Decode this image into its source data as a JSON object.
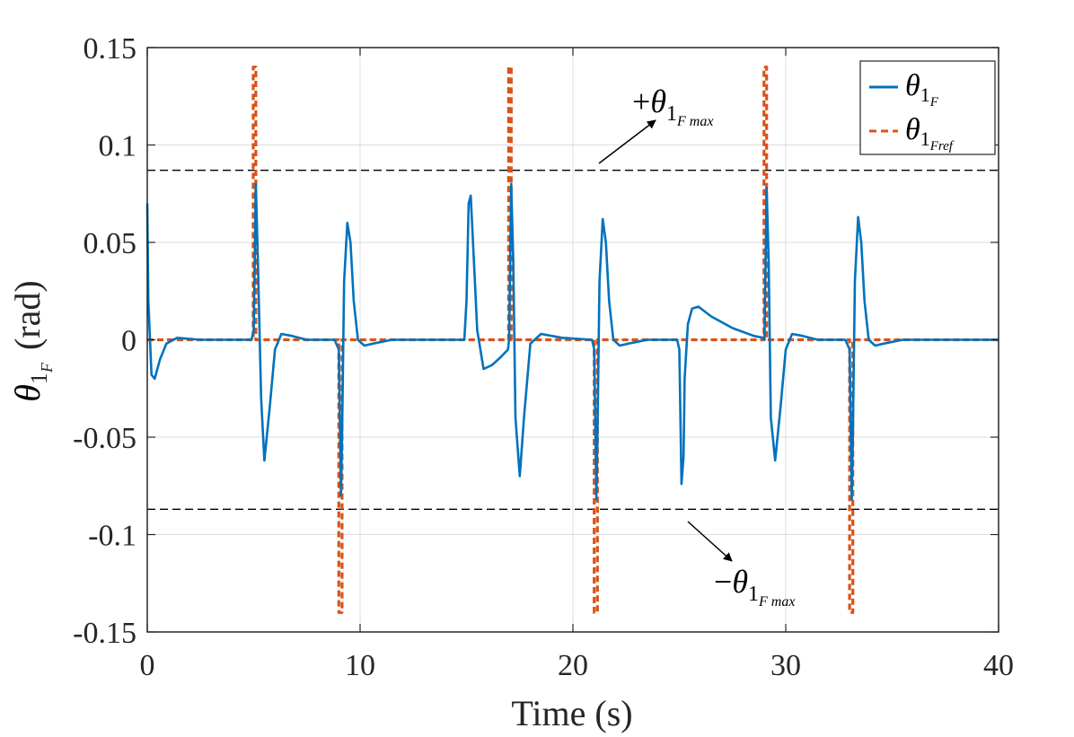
{
  "chart_data": {
    "type": "line",
    "title": "",
    "xlabel": "Time (s)",
    "ylabel": {
      "symbol": "θ",
      "subscript": "1",
      "sub_sub": "F",
      "unit": "(rad)"
    },
    "xlim": [
      0,
      40
    ],
    "ylim": [
      -0.15,
      0.15
    ],
    "xticks": [
      0,
      10,
      20,
      30,
      40
    ],
    "xtick_labels": [
      "0",
      "10",
      "20",
      "30",
      "40"
    ],
    "yticks": [
      0.15,
      0.1,
      0.05,
      0,
      -0.05,
      -0.1,
      -0.15
    ],
    "ytick_labels": [
      "0.15",
      "0.1",
      "0.05",
      "0",
      "-0.05",
      "-0.1",
      "-0.15"
    ],
    "grid": true,
    "legend_position": "top-right",
    "legend": [
      {
        "name": "θ1F",
        "symbol": "θ",
        "sub": "1",
        "subsub": "F",
        "style": "solid",
        "color": "#0072BD"
      },
      {
        "name": "θ1Fref",
        "symbol": "θ",
        "sub": "1",
        "subsub": "Fref",
        "style": "dashed",
        "color": "#D95319"
      }
    ],
    "limits": {
      "upper": 0.087,
      "lower": -0.087,
      "color": "#000000",
      "style": "dashed"
    },
    "annotations": [
      {
        "sign": "+",
        "symbol": "θ",
        "sub": "1",
        "subsub": "F max",
        "target": "upper limit"
      },
      {
        "sign": "−",
        "symbol": "θ",
        "sub": "1",
        "subsub": "F max",
        "target": "lower limit"
      }
    ],
    "series": [
      {
        "name": "θ1F",
        "color": "#0072BD",
        "style": "solid",
        "x": [
          0,
          0.05,
          0.2,
          0.35,
          0.6,
          0.9,
          1.4,
          2.5,
          4.9,
          5.0,
          5.1,
          5.2,
          5.35,
          5.5,
          5.75,
          6.0,
          6.3,
          6.8,
          7.5,
          8.8,
          9.0,
          9.1,
          9.15,
          9.25,
          9.4,
          9.55,
          9.7,
          9.9,
          10.2,
          10.6,
          11.5,
          14.9,
          15.0,
          15.1,
          15.2,
          15.35,
          15.5,
          15.8,
          16.2,
          16.6,
          16.95,
          17.0,
          17.1,
          17.2,
          17.3,
          17.5,
          17.7,
          18.0,
          18.5,
          19.5,
          20.9,
          21.0,
          21.1,
          21.15,
          21.25,
          21.4,
          21.55,
          21.7,
          21.9,
          22.2,
          22.6,
          23.5,
          24.9,
          25.0,
          25.1,
          25.2,
          25.25,
          25.4,
          25.6,
          25.9,
          26.5,
          27.5,
          28.5,
          28.95,
          29.0,
          29.1,
          29.2,
          29.3,
          29.5,
          29.75,
          30.0,
          30.3,
          30.8,
          31.5,
          32.8,
          33.0,
          33.1,
          33.15,
          33.25,
          33.4,
          33.55,
          33.7,
          33.9,
          34.2,
          34.6,
          35.5,
          37.0,
          40.0
        ],
        "y": [
          0.07,
          0.02,
          -0.018,
          -0.02,
          -0.01,
          -0.002,
          0.001,
          0.0,
          0.0,
          0.005,
          0.08,
          0.04,
          -0.03,
          -0.062,
          -0.035,
          -0.005,
          0.003,
          0.002,
          0.0,
          0.0,
          -0.005,
          -0.08,
          -0.05,
          0.03,
          0.06,
          0.05,
          0.02,
          0.0,
          -0.003,
          -0.002,
          0.0,
          0.0,
          0.02,
          0.07,
          0.074,
          0.04,
          0.005,
          -0.015,
          -0.013,
          -0.009,
          -0.005,
          0.0,
          0.08,
          0.04,
          -0.04,
          -0.07,
          -0.04,
          -0.002,
          0.003,
          0.001,
          0.0,
          -0.005,
          -0.082,
          -0.05,
          0.03,
          0.062,
          0.05,
          0.02,
          0.0,
          -0.003,
          -0.002,
          0.0,
          0.0,
          -0.005,
          -0.074,
          -0.06,
          -0.02,
          0.008,
          0.016,
          0.017,
          0.012,
          0.006,
          0.002,
          0.001,
          0.0,
          0.078,
          0.04,
          -0.04,
          -0.062,
          -0.035,
          -0.005,
          0.003,
          0.002,
          0.0,
          0.0,
          -0.005,
          -0.082,
          -0.05,
          0.03,
          0.063,
          0.05,
          0.02,
          0.0,
          -0.003,
          -0.002,
          0.0,
          0.0,
          0.0
        ]
      },
      {
        "name": "θ1Fref",
        "color": "#D95319",
        "style": "dashed",
        "x": [
          0,
          4.98,
          4.98,
          5.1,
          5.1,
          9.0,
          9.0,
          9.15,
          9.15,
          16.98,
          16.98,
          17.1,
          17.1,
          21.0,
          21.0,
          21.15,
          21.15,
          28.98,
          28.98,
          29.1,
          29.1,
          33.0,
          33.0,
          33.15,
          33.15,
          40.0
        ],
        "y": [
          0,
          0,
          0.14,
          0.14,
          0,
          0,
          -0.14,
          -0.14,
          0,
          0,
          0.14,
          0.14,
          0,
          0,
          -0.14,
          -0.14,
          0,
          0,
          0.14,
          0.14,
          0,
          0,
          -0.14,
          -0.14,
          0,
          0
        ]
      }
    ]
  }
}
